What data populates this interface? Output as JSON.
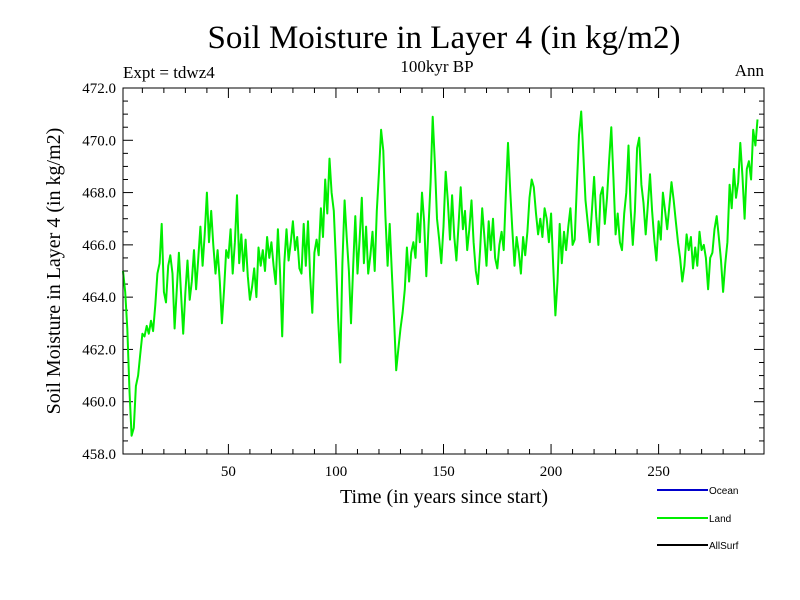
{
  "chart_data": {
    "type": "line",
    "title": "Soil Moisture in Layer 4 (in kg/m2)",
    "subtitle": "100kyr BP",
    "left_note": "Expt = tdwz4",
    "right_note": "Ann",
    "xlabel": "Time (in years since start)",
    "ylabel": "Soil Moisture in Layer 4 (in kg/m2)",
    "xlim": [
      1,
      299
    ],
    "ylim": [
      458.0,
      472.0
    ],
    "x_ticks": [
      50,
      100,
      150,
      200,
      250
    ],
    "y_ticks": [
      "458.0",
      "460.0",
      "462.0",
      "464.0",
      "466.0",
      "468.0",
      "470.0",
      "472.0"
    ],
    "legend": [
      {
        "name": "Ocean",
        "color": "#0000cc"
      },
      {
        "name": "Land",
        "color": "#00ee00"
      },
      {
        "name": "AllSurf",
        "color": "#000000"
      }
    ],
    "series": [
      {
        "name": "Land",
        "color": "#00ee00",
        "x_start": 1,
        "x_step": 1,
        "values": [
          465.0,
          464.2,
          462.8,
          460.4,
          458.7,
          459.0,
          460.6,
          461.0,
          461.8,
          462.6,
          462.5,
          462.9,
          462.6,
          463.1,
          462.7,
          463.7,
          464.9,
          465.3,
          466.8,
          464.2,
          463.8,
          465.2,
          465.6,
          464.9,
          462.8,
          464.3,
          465.7,
          464.1,
          462.6,
          464.2,
          465.4,
          463.9,
          464.6,
          465.8,
          464.3,
          465.5,
          466.7,
          465.2,
          466.4,
          468.0,
          466.1,
          467.3,
          466.0,
          464.9,
          465.8,
          464.6,
          463.0,
          464.3,
          465.8,
          465.5,
          466.6,
          464.9,
          466.1,
          467.9,
          465.3,
          466.4,
          465.0,
          466.2,
          464.8,
          463.9,
          464.4,
          465.1,
          464.0,
          465.9,
          465.2,
          465.8,
          465.0,
          466.3,
          465.5,
          466.1,
          465.2,
          464.5,
          466.6,
          465.0,
          462.5,
          465.3,
          466.6,
          465.4,
          466.1,
          466.9,
          465.8,
          466.3,
          465.1,
          464.9,
          466.8,
          465.2,
          466.9,
          464.8,
          463.4,
          465.7,
          466.2,
          465.6,
          467.4,
          466.3,
          468.5,
          467.2,
          469.3,
          468.0,
          467.3,
          465.4,
          463.2,
          461.5,
          465.3,
          467.7,
          466.3,
          465.0,
          463.0,
          465.2,
          467.1,
          464.9,
          466.2,
          467.8,
          465.3,
          466.7,
          464.9,
          465.6,
          466.5,
          465.0,
          467.3,
          468.8,
          470.4,
          469.6,
          467.1,
          465.2,
          466.8,
          464.9,
          463.2,
          461.2,
          462.0,
          462.8,
          463.4,
          464.3,
          465.9,
          464.6,
          465.7,
          466.1,
          465.5,
          467.2,
          466.1,
          468.0,
          466.9,
          464.8,
          466.6,
          468.4,
          470.9,
          469.1,
          467.0,
          466.2,
          465.3,
          466.7,
          468.8,
          467.7,
          466.2,
          467.9,
          466.3,
          465.4,
          466.8,
          468.2,
          466.6,
          467.3,
          465.8,
          466.6,
          467.7,
          466.1,
          465.0,
          464.5,
          465.8,
          467.4,
          466.3,
          465.2,
          466.9,
          465.8,
          467.0,
          465.5,
          465.1,
          466.0,
          466.5,
          465.8,
          468.0,
          469.9,
          468.1,
          466.6,
          465.2,
          466.3,
          465.7,
          464.9,
          466.3,
          465.6,
          466.5,
          467.8,
          468.5,
          468.2,
          467.2,
          466.4,
          467.0,
          466.3,
          467.4,
          467.0,
          466.1,
          467.2,
          465.2,
          463.3,
          464.6,
          466.8,
          465.3,
          466.5,
          465.8,
          466.7,
          467.4,
          466.0,
          466.2,
          468.3,
          470.2,
          471.1,
          469.5,
          467.7,
          466.9,
          466.1,
          467.3,
          468.6,
          467.1,
          466.0,
          467.9,
          468.2,
          466.8,
          467.8,
          469.2,
          470.5,
          468.6,
          466.4,
          467.2,
          466.1,
          465.8,
          467.2,
          468.0,
          469.8,
          467.4,
          466.0,
          467.3,
          469.7,
          470.1,
          468.3,
          467.6,
          466.4,
          467.5,
          468.7,
          467.3,
          466.2,
          465.4,
          466.9,
          466.2,
          468.0,
          467.3,
          466.6,
          467.5,
          468.4,
          467.7,
          466.9,
          466.1,
          465.5,
          464.6,
          465.2,
          466.4,
          465.8,
          466.3,
          465.1,
          465.9,
          465.2,
          466.5,
          465.8,
          466.0,
          465.5,
          464.3,
          465.5,
          465.7,
          466.6,
          467.1,
          466.3,
          465.4,
          464.2,
          465.3,
          466.1,
          468.3,
          467.4,
          468.9,
          467.8,
          468.4,
          469.9,
          468.6,
          467.0,
          468.9,
          469.2,
          468.5,
          470.4,
          469.8,
          470.8
        ]
      }
    ]
  }
}
